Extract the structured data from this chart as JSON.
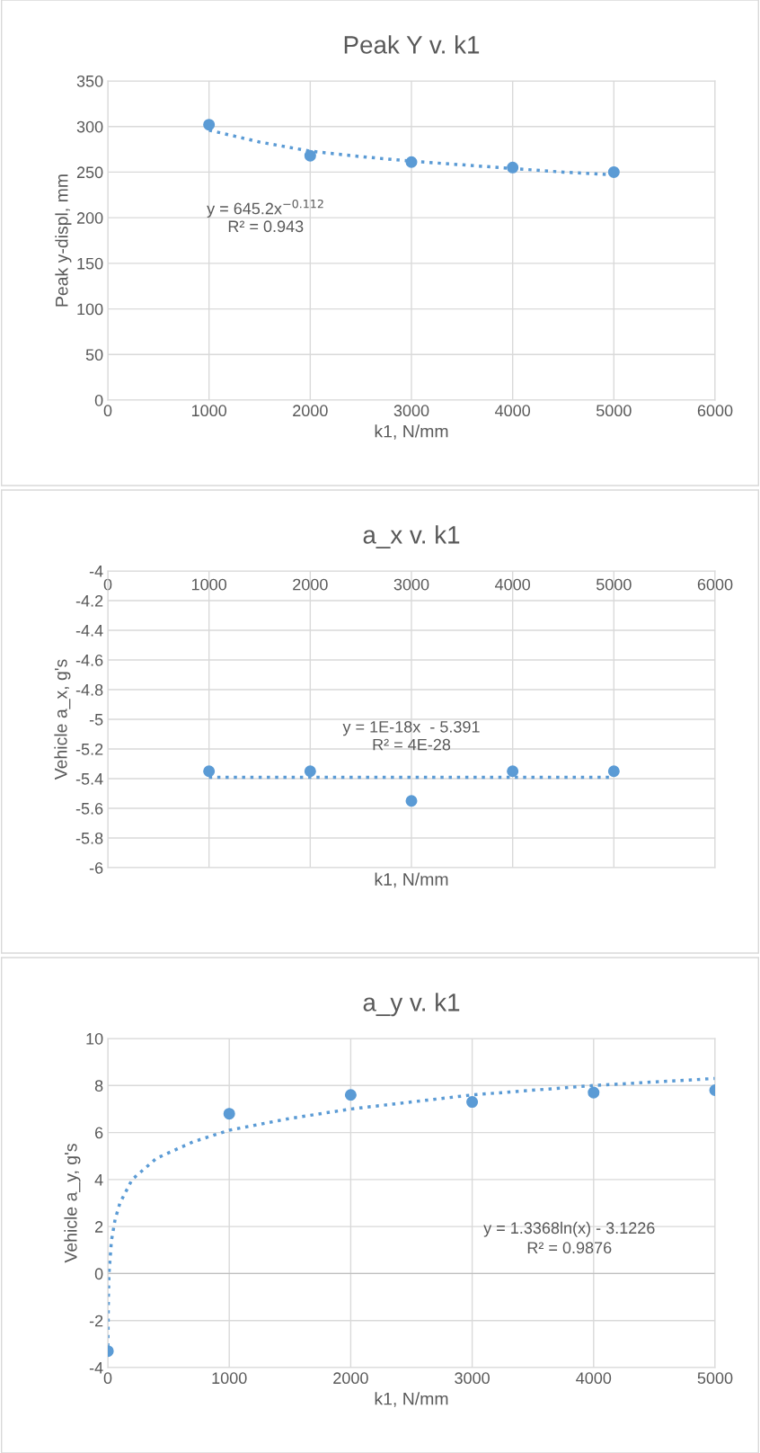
{
  "chart_data": [
    {
      "type": "scatter",
      "title": "Peak Y v. k1",
      "xlabel": "k1, N/mm",
      "ylabel": "Peak y-displ, mm",
      "x": [
        1000,
        2000,
        3000,
        4000,
        5000
      ],
      "xlim": [
        0,
        6000
      ],
      "xticks": [
        0,
        1000,
        2000,
        3000,
        4000,
        5000,
        6000
      ],
      "ylim": [
        0,
        350
      ],
      "yticks": [
        0,
        50,
        100,
        150,
        200,
        250,
        300,
        350
      ],
      "grid": true,
      "series": [
        {
          "color": "#5b9bd5",
          "marker": "circle",
          "values": [
            302,
            268,
            261,
            255,
            250
          ]
        },
        {
          "type": "line",
          "marker": "none",
          "line_style": "dotted",
          "color": "#5b9bd5",
          "x": [
            1000,
            1500,
            2000,
            2500,
            3000,
            3500,
            4000,
            4500,
            5000
          ],
          "values": [
            296,
            283,
            273,
            267,
            262,
            258,
            254,
            250,
            247
          ]
        }
      ],
      "annotations": [
        "y = 645.2x$^{−0.112}$",
        "R² = 0.943"
      ]
    },
    {
      "type": "scatter",
      "title": "a_x v. k1",
      "xlabel": "k1, N/mm",
      "ylabel": "Vehicle a_x, g's",
      "x": [
        1000,
        2000,
        3000,
        4000,
        5000
      ],
      "xlim": [
        0,
        6000
      ],
      "xticks": [
        0,
        1000,
        2000,
        3000,
        4000,
        5000,
        6000
      ],
      "ylim": [
        -6,
        -4
      ],
      "yticks": [
        -6,
        -5.8,
        -5.6,
        -5.4,
        -5.2,
        -5,
        -4.8,
        -4.6,
        -4.4,
        -4.2,
        -4
      ],
      "grid": true,
      "series": [
        {
          "color": "#5b9bd5",
          "marker": "circle",
          "values": [
            -5.35,
            -5.35,
            -5.55,
            -5.35,
            -5.35
          ]
        },
        {
          "type": "line",
          "marker": "none",
          "line_style": "dotted",
          "color": "#5b9bd5",
          "x": [
            1000,
            5000
          ],
          "values": [
            -5.391,
            -5.391
          ]
        }
      ],
      "annotations": [
        "y = 1E-18x  - 5.391",
        "R² = 4E-28"
      ]
    },
    {
      "type": "scatter",
      "title": "a_y v. k1",
      "xlabel": "k1, N/mm",
      "ylabel": "Vehicle a_y, g's",
      "x": [
        1,
        1000,
        2000,
        3000,
        4000,
        5000
      ],
      "xlim": [
        0,
        5000
      ],
      "xticks": [
        0,
        1000,
        2000,
        3000,
        4000,
        5000
      ],
      "ylim": [
        -4,
        10
      ],
      "yticks": [
        -4,
        -2,
        0,
        2,
        4,
        6,
        8,
        10
      ],
      "grid": true,
      "series": [
        {
          "color": "#5b9bd5",
          "marker": "circle",
          "values": [
            -3.3,
            6.8,
            7.6,
            7.3,
            7.7,
            7.8
          ]
        },
        {
          "type": "line",
          "marker": "none",
          "line_style": "dotted",
          "color": "#5b9bd5",
          "x": [
            1,
            5,
            10,
            30,
            60,
            100,
            200,
            400,
            700,
            1000,
            1500,
            2000,
            3000,
            4000,
            5000
          ],
          "values": [
            -3.1,
            -1.0,
            0.0,
            1.4,
            2.3,
            3.0,
            4.0,
            4.9,
            5.6,
            6.1,
            6.6,
            7.0,
            7.6,
            8.0,
            8.3
          ]
        }
      ],
      "annotations": [
        "y = 1.3368ln(x) - 3.1226",
        "R² = 0.9876"
      ]
    }
  ]
}
